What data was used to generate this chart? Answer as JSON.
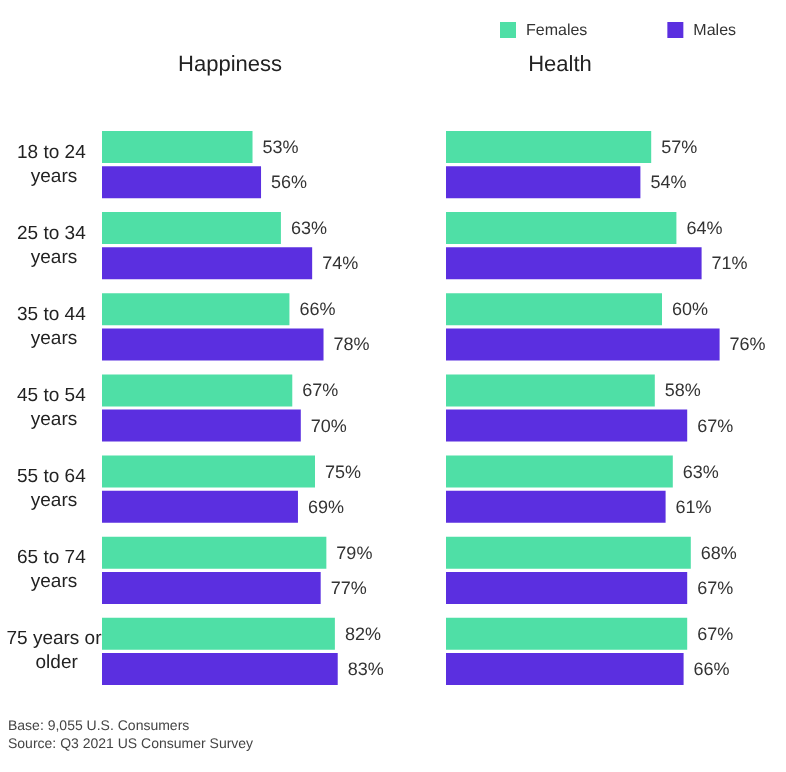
{
  "chart_data": [
    {
      "type": "bar",
      "orientation": "horizontal",
      "title": "Happiness",
      "legend": "top",
      "categories": [
        "18 to 24 years",
        "25 to 34 years",
        "35 to 44 years",
        "45 to 54 years",
        "55 to 64 years",
        "65 to 74 years",
        "75 years or older"
      ],
      "series": [
        {
          "name": "Females",
          "color": "#4fdfa6",
          "values": [
            53,
            63,
            66,
            67,
            75,
            79,
            82
          ],
          "value_labels": [
            "53%",
            "63%",
            "66%",
            "67%",
            "75%",
            "79%",
            "82%"
          ]
        },
        {
          "name": "Males",
          "color": "#5b2fe0",
          "values": [
            56,
            74,
            78,
            70,
            69,
            77,
            83
          ],
          "value_labels": [
            "56%",
            "74%",
            "78%",
            "70%",
            "69%",
            "77%",
            "83%"
          ]
        }
      ],
      "annotations": [
        "Base: 9,055 U.S. Consumers",
        "Source: Q3 2021 US Consumer Survey"
      ]
    },
    {
      "type": "bar",
      "orientation": "horizontal",
      "title": "Health",
      "tick_labels": false,
      "categories": [
        "18 to 24 years",
        "25 to 34 years",
        "35 to 44 years",
        "45 to 54 years",
        "55 to 64 years",
        "65 to 74 years",
        "75 years or older"
      ],
      "series": [
        {
          "color": "#4fdfa6",
          "values": [
            57,
            64,
            60,
            58,
            63,
            68,
            67
          ],
          "value_labels": [
            "57%",
            "64%",
            "60%",
            "58%",
            "63%",
            "68%",
            "67%"
          ]
        },
        {
          "color": "#5b2fe0",
          "values": [
            54,
            71,
            76,
            67,
            61,
            67,
            66
          ],
          "value_labels": [
            "54%",
            "71%",
            "76%",
            "67%",
            "61%",
            "67%",
            "66%"
          ]
        }
      ]
    }
  ]
}
